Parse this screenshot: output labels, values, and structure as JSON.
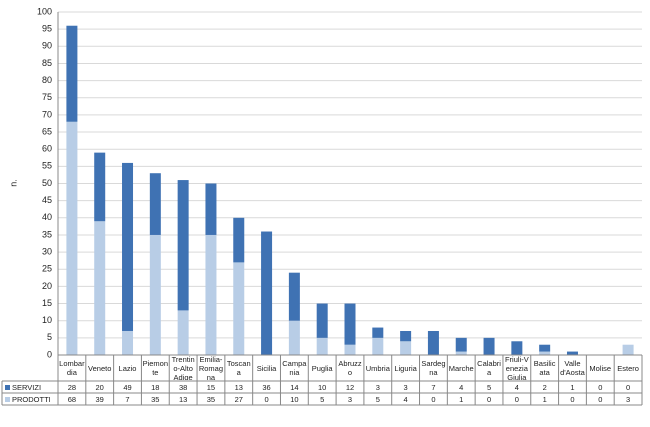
{
  "chart_data": {
    "type": "bar",
    "stacked": true,
    "ylabel": "n.",
    "categories": [
      "Lombardia",
      "Veneto",
      "Lazio",
      "Piemonte",
      "Trentino-Alto Adige",
      "Emilia-Romagna",
      "Toscana",
      "Sicilia",
      "Campania",
      "Puglia",
      "Abruzzo",
      "Umbria",
      "Liguria",
      "Sardegna",
      "Marche",
      "Calabria",
      "Friuli-Venezia Giulia",
      "Basilicata",
      "Valle d'Aosta",
      "Molise",
      "Estero"
    ],
    "series": [
      {
        "name": "SERVIZI",
        "color": "#3f72b3",
        "values": [
          28,
          20,
          49,
          18,
          38,
          15,
          13,
          36,
          14,
          10,
          12,
          3,
          3,
          7,
          4,
          5,
          4,
          2,
          1,
          0,
          0
        ]
      },
      {
        "name": "PRODOTTI",
        "color": "#b8cde6",
        "values": [
          68,
          39,
          7,
          35,
          13,
          35,
          27,
          0,
          10,
          5,
          3,
          5,
          4,
          0,
          1,
          0,
          0,
          1,
          0,
          0,
          3
        ]
      }
    ],
    "ylim": [
      0,
      100
    ],
    "yticks": [
      0,
      5,
      10,
      15,
      20,
      25,
      30,
      35,
      40,
      45,
      50,
      55,
      60,
      65,
      70,
      75,
      80,
      85,
      90,
      95,
      100
    ],
    "grid": true
  }
}
